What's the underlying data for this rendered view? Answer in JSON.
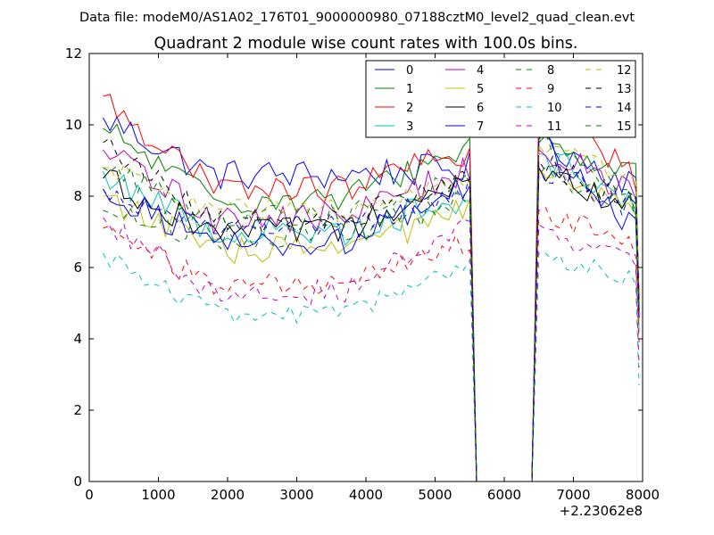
{
  "chart_data": {
    "type": "line",
    "suptitle": "Data file: modeM0/AS1A02_176T01_9000000980_07188cztM0_level2_quad_clean.evt",
    "title": "Quadrant 2 module wise count rates with 100.0s bins.",
    "xlabel": "",
    "ylabel": "",
    "x_offset_label": "+2.23062e8",
    "xlim": [
      0,
      8000
    ],
    "ylim": [
      0,
      12
    ],
    "xticks": [
      "0",
      "1000",
      "2000",
      "3000",
      "4000",
      "5000",
      "6000",
      "7000",
      "8000"
    ],
    "yticks": [
      "0",
      "2",
      "4",
      "6",
      "8",
      "10",
      "12"
    ],
    "legend_position": "top-right",
    "series": [
      {
        "name": "0",
        "color": "#0000ff",
        "dash": "solid",
        "start": 10.2,
        "plateau": 8.6,
        "end_jump": 8.8,
        "post": 9.6,
        "post_end": 8.3,
        "drop": 5.0,
        "noise": 0.45
      },
      {
        "name": "1",
        "color": "#008000",
        "dash": "solid",
        "start": 9.9,
        "plateau": 7.9,
        "end_jump": 9.4,
        "post": 9.5,
        "post_end": 8.6,
        "drop": 5.0,
        "noise": 0.4
      },
      {
        "name": "2",
        "color": "#ff0000",
        "dash": "solid",
        "start": 10.8,
        "plateau": 8.2,
        "end_jump": 9.3,
        "post": 10.6,
        "post_end": 8.5,
        "drop": 5.2,
        "noise": 0.4
      },
      {
        "name": "3",
        "color": "#00bfbf",
        "dash": "solid",
        "start": 8.7,
        "plateau": 7.0,
        "end_jump": 8.0,
        "post": 9.2,
        "post_end": 7.7,
        "drop": 4.2,
        "noise": 0.45
      },
      {
        "name": "4",
        "color": "#bf00bf",
        "dash": "solid",
        "start": 9.3,
        "plateau": 7.4,
        "end_jump": 8.8,
        "post": 9.3,
        "post_end": 8.0,
        "drop": 4.8,
        "noise": 0.45
      },
      {
        "name": "5",
        "color": "#bfbf00",
        "dash": "solid",
        "start": 8.0,
        "plateau": 6.5,
        "end_jump": 7.6,
        "post": 8.8,
        "post_end": 7.4,
        "drop": 4.5,
        "noise": 0.4
      },
      {
        "name": "6",
        "color": "#000000",
        "dash": "solid",
        "start": 8.5,
        "plateau": 7.0,
        "end_jump": 8.3,
        "post": 8.8,
        "post_end": 7.6,
        "drop": 4.6,
        "noise": 0.4
      },
      {
        "name": "7",
        "color": "#0000ff",
        "dash": "solid",
        "start": 8.2,
        "plateau": 6.7,
        "end_jump": 8.3,
        "post": 9.6,
        "post_end": 7.0,
        "drop": 4.6,
        "noise": 0.4
      },
      {
        "name": "8",
        "color": "#008000",
        "dash": "dashed",
        "start": 7.6,
        "plateau": 6.9,
        "end_jump": 7.9,
        "post": 8.6,
        "post_end": 7.7,
        "drop": 4.4,
        "noise": 0.4
      },
      {
        "name": "9",
        "color": "#ff0000",
        "dash": "dashed",
        "start": 7.1,
        "plateau": 5.5,
        "end_jump": 6.8,
        "post": 7.6,
        "post_end": 6.5,
        "drop": 3.9,
        "noise": 0.35
      },
      {
        "name": "10",
        "color": "#00bfbf",
        "dash": "dashed",
        "start": 6.4,
        "plateau": 4.7,
        "end_jump": 6.0,
        "post": 6.4,
        "post_end": 5.6,
        "drop": 2.7,
        "noise": 0.3
      },
      {
        "name": "11",
        "color": "#bf00bf",
        "dash": "dashed",
        "start": 7.4,
        "plateau": 5.3,
        "end_jump": 7.2,
        "post": 7.2,
        "post_end": 6.0,
        "drop": 3.2,
        "noise": 0.35
      },
      {
        "name": "12",
        "color": "#bfbf00",
        "dash": "dashed",
        "start": 8.8,
        "plateau": 7.6,
        "end_jump": 8.5,
        "post": 9.4,
        "post_end": 8.3,
        "drop": 4.8,
        "noise": 0.35
      },
      {
        "name": "13",
        "color": "#000000",
        "dash": "dashed",
        "start": 9.5,
        "plateau": 7.3,
        "end_jump": 8.6,
        "post": 9.0,
        "post_end": 7.7,
        "drop": 4.8,
        "noise": 0.35
      },
      {
        "name": "14",
        "color": "#0000ff",
        "dash": "dashed",
        "start": 8.2,
        "plateau": 7.1,
        "end_jump": 8.2,
        "post": 8.8,
        "post_end": 7.6,
        "drop": 4.6,
        "noise": 0.35
      },
      {
        "name": "15",
        "color": "#008000",
        "dash": "dashed",
        "start": 8.8,
        "plateau": 7.4,
        "end_jump": 8.5,
        "post": 9.6,
        "post_end": 7.7,
        "drop": 4.8,
        "noise": 0.35
      }
    ],
    "segments": {
      "first_x": 200,
      "step": 100,
      "on1_end": 5500,
      "gap_start": 5600,
      "gap_end": 6400,
      "on2_start": 6500,
      "last_x": 7950
    }
  }
}
